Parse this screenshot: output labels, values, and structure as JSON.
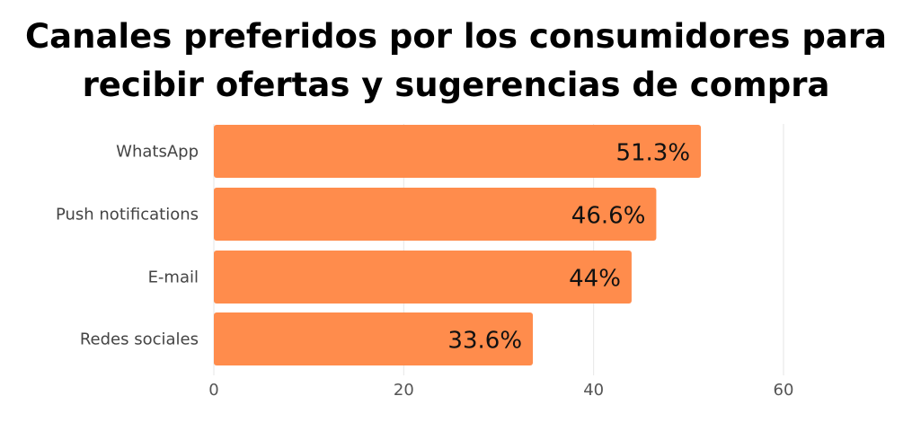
{
  "chart_data": {
    "type": "bar",
    "orientation": "horizontal",
    "title_lines": [
      "Canales preferidos por los consumidores para",
      "recibir ofertas y sugerencias de compra"
    ],
    "categories": [
      "WhatsApp",
      "Push notifications",
      "E-mail",
      "Redes sociales"
    ],
    "values": [
      51.3,
      46.6,
      44,
      33.6
    ],
    "value_labels": [
      "51.3%",
      "46.6%",
      "44%",
      "33.6%"
    ],
    "xlim": [
      0,
      60
    ],
    "xticks": [
      "0",
      "20",
      "40",
      "60"
    ],
    "xtick_values": [
      0,
      20,
      40,
      60
    ],
    "grid": true,
    "bar_color": "#ff8c4c"
  }
}
